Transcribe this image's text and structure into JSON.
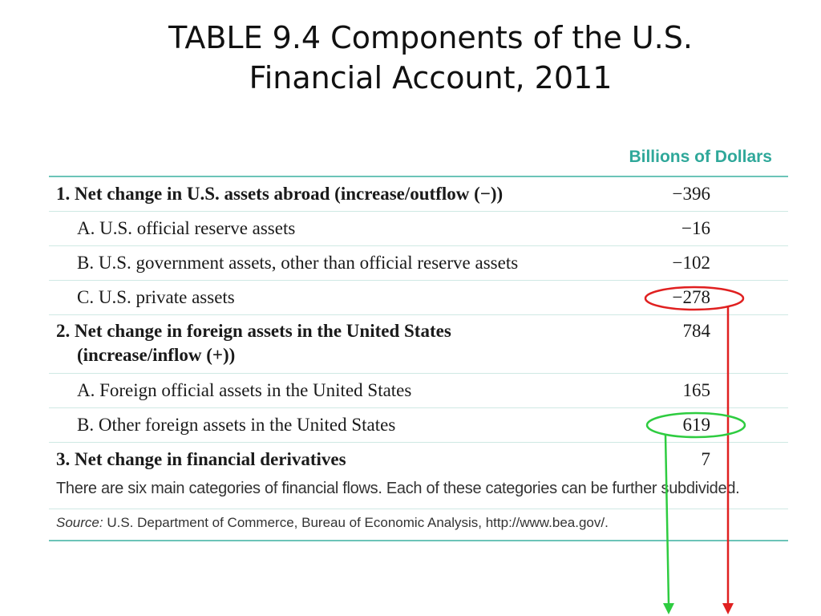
{
  "title": {
    "line1": "TABLE 9.4  Components of the U.S.",
    "line2": "Financial Account, 2011"
  },
  "table": {
    "units_header": "Billions of Dollars",
    "rows": [
      {
        "label": "1. Net change in U.S. assets abroad (increase/outflow (−))",
        "value": "−396",
        "bold": true
      },
      {
        "label": "A. U.S. official reserve assets",
        "value": "−16",
        "bold": false
      },
      {
        "label": "B. U.S. government assets, other than official reserve assets",
        "value": "−102",
        "bold": false
      },
      {
        "label": "C. U.S. private assets",
        "value": "−278",
        "bold": false
      },
      {
        "label": "2. Net change in foreign assets in the United States",
        "label_line2": "(increase/inflow (+))",
        "value": "784",
        "bold": true
      },
      {
        "label": "A. Foreign official assets in the United States",
        "value": "165",
        "bold": false
      },
      {
        "label": "B. Other foreign assets in the United States",
        "value": "619",
        "bold": false
      },
      {
        "label": "3. Net change in financial derivatives",
        "value": "7",
        "bold": true
      }
    ],
    "note": "There are six main categories of financial flows. Each of these categories can be further subdivided.",
    "source_label": "Source:",
    "source_text": " U.S. Department of Commerce, Bureau of Economic Analysis, http://www.bea.gov/."
  },
  "annotations": {
    "red_color": "#e02020",
    "green_color": "#2ecc40"
  }
}
